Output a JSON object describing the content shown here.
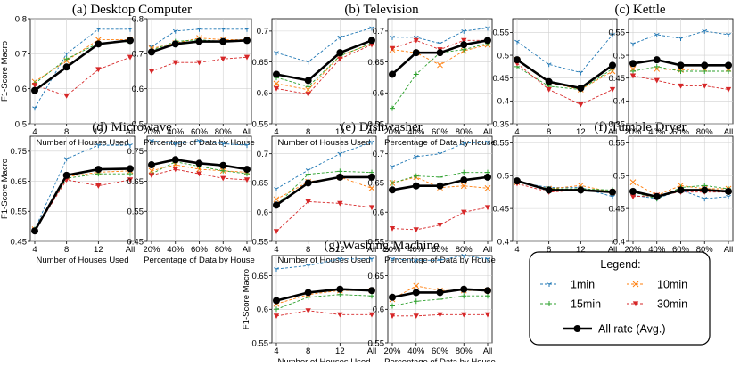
{
  "series_styles": [
    {
      "name": "1min",
      "color": "#1f77b4",
      "dash": "3,2",
      "marker": "tri_down",
      "width": 0.9
    },
    {
      "name": "10min",
      "color": "#ff7f0e",
      "dash": "3,2",
      "marker": "x",
      "width": 0.9
    },
    {
      "name": "15min",
      "color": "#2ca02c",
      "dash": "3,2",
      "marker": "plus",
      "width": 0.9
    },
    {
      "name": "30min",
      "color": "#d62728",
      "dash": "3,2",
      "marker": "tri_down_filled",
      "width": 0.9
    },
    {
      "name": "All rate (Avg.)",
      "color": "#000000",
      "dash": "",
      "marker": "circle",
      "width": 2.6
    }
  ],
  "legend": {
    "title": "Legend:",
    "items": [
      "1min",
      "10min",
      "15min",
      "30min",
      "All rate (Avg.)"
    ]
  },
  "groups": [
    {
      "title": "(a) Desktop Computer"
    },
    {
      "title": "(b) Television"
    },
    {
      "title": "(c) Kettle"
    },
    {
      "title": "(d) Microwave"
    },
    {
      "title": "(e) Dishwasher"
    },
    {
      "title": "(f) Tumble Dryer"
    },
    {
      "title": "(g) Washing Machine"
    }
  ],
  "chart_data": [
    {
      "id": "a1",
      "group": "(a) Desktop Computer",
      "type": "line",
      "xlabel": "Number of Houses Used",
      "ylabel": "F1-Score Macro",
      "categories": [
        "4",
        "8",
        "12",
        "All"
      ],
      "ylim": [
        0.5,
        0.8
      ],
      "yticks": [
        0.5,
        0.6,
        0.7,
        0.8
      ],
      "series": [
        {
          "name": "1min",
          "values": [
            0.545,
            0.7,
            0.77,
            0.77
          ]
        },
        {
          "name": "10min",
          "values": [
            0.62,
            0.68,
            0.74,
            0.74
          ]
        },
        {
          "name": "15min",
          "values": [
            0.615,
            0.685,
            0.73,
            0.735
          ]
        },
        {
          "name": "30min",
          "values": [
            0.61,
            0.58,
            0.655,
            0.69
          ]
        },
        {
          "name": "All rate (Avg.)",
          "values": [
            0.595,
            0.662,
            0.728,
            0.738
          ]
        }
      ]
    },
    {
      "id": "a2",
      "group": "(a) Desktop Computer",
      "type": "line",
      "xlabel": "Percentage of Data by House",
      "ylabel": "",
      "categories": [
        "20%",
        "40%",
        "60%",
        "80%",
        "All"
      ],
      "ylim": [
        0.5,
        0.8
      ],
      "yticks": [
        0.5,
        0.6,
        0.7,
        0.8
      ],
      "series": [
        {
          "name": "1min",
          "values": [
            0.72,
            0.765,
            0.77,
            0.77,
            0.77
          ]
        },
        {
          "name": "10min",
          "values": [
            0.715,
            0.73,
            0.745,
            0.74,
            0.74
          ]
        },
        {
          "name": "15min",
          "values": [
            0.71,
            0.735,
            0.74,
            0.735,
            0.74
          ]
        },
        {
          "name": "30min",
          "values": [
            0.65,
            0.675,
            0.675,
            0.685,
            0.69
          ]
        },
        {
          "name": "All rate (Avg.)",
          "values": [
            0.705,
            0.728,
            0.735,
            0.735,
            0.738
          ]
        }
      ]
    },
    {
      "id": "b1",
      "group": "(b) Television",
      "type": "line",
      "xlabel": "Number of Houses Used",
      "ylabel": "",
      "categories": [
        "4",
        "8",
        "12",
        "All"
      ],
      "ylim": [
        0.55,
        0.72
      ],
      "yticks": [
        0.55,
        0.6,
        0.65,
        0.7
      ],
      "series": [
        {
          "name": "1min",
          "values": [
            0.665,
            0.65,
            0.69,
            0.705
          ]
        },
        {
          "name": "10min",
          "values": [
            0.615,
            0.605,
            0.66,
            0.68
          ]
        },
        {
          "name": "15min",
          "values": [
            0.625,
            0.61,
            0.66,
            0.68
          ]
        },
        {
          "name": "30min",
          "values": [
            0.607,
            0.598,
            0.655,
            0.678
          ]
        },
        {
          "name": "All rate (Avg.)",
          "values": [
            0.63,
            0.62,
            0.665,
            0.685
          ]
        }
      ]
    },
    {
      "id": "b2",
      "group": "(b) Television",
      "type": "line",
      "xlabel": "Percentage of Data by House",
      "ylabel": "",
      "categories": [
        "20%",
        "40%",
        "60%",
        "80%",
        "All"
      ],
      "ylim": [
        0.55,
        0.72
      ],
      "yticks": [
        0.55,
        0.6,
        0.65,
        0.7
      ],
      "series": [
        {
          "name": "1min",
          "values": [
            0.69,
            0.69,
            0.68,
            0.7,
            0.705
          ]
        },
        {
          "name": "10min",
          "values": [
            0.67,
            0.665,
            0.645,
            0.668,
            0.678
          ]
        },
        {
          "name": "15min",
          "values": [
            0.575,
            0.63,
            0.665,
            0.67,
            0.68
          ]
        },
        {
          "name": "30min",
          "values": [
            0.672,
            0.685,
            0.67,
            0.685,
            0.685
          ]
        },
        {
          "name": "All rate (Avg.)",
          "values": [
            0.63,
            0.665,
            0.665,
            0.678,
            0.685
          ]
        }
      ]
    },
    {
      "id": "c1",
      "group": "(c) Kettle",
      "type": "line",
      "xlabel": "",
      "ylabel": "",
      "categories": [
        "4",
        "8",
        "12",
        "All"
      ],
      "ylim": [
        0.35,
        0.58
      ],
      "yticks": [
        0.35,
        0.4,
        0.45,
        0.5,
        0.55
      ],
      "series": [
        {
          "name": "1min",
          "values": [
            0.53,
            0.48,
            0.462,
            0.545
          ]
        },
        {
          "name": "10min",
          "values": [
            0.49,
            0.44,
            0.425,
            0.465
          ]
        },
        {
          "name": "15min",
          "values": [
            0.475,
            0.432,
            0.425,
            0.47
          ]
        },
        {
          "name": "30min",
          "values": [
            0.482,
            0.425,
            0.392,
            0.425
          ]
        },
        {
          "name": "All rate (Avg.)",
          "values": [
            0.49,
            0.442,
            0.428,
            0.478
          ]
        }
      ]
    },
    {
      "id": "c2",
      "group": "(c) Kettle",
      "type": "line",
      "xlabel": "",
      "ylabel": "",
      "categories": [
        "20%",
        "40%",
        "60%",
        "80%",
        "All"
      ],
      "ylim": [
        0.35,
        0.58
      ],
      "yticks": [
        0.35,
        0.4,
        0.45,
        0.5,
        0.55
      ],
      "series": [
        {
          "name": "1min",
          "values": [
            0.525,
            0.545,
            0.537,
            0.553,
            0.545
          ]
        },
        {
          "name": "10min",
          "values": [
            0.47,
            0.47,
            0.468,
            0.47,
            0.47
          ]
        },
        {
          "name": "15min",
          "values": [
            0.465,
            0.475,
            0.465,
            0.465,
            0.465
          ]
        },
        {
          "name": "30min",
          "values": [
            0.455,
            0.445,
            0.433,
            0.433,
            0.425
          ]
        },
        {
          "name": "All rate (Avg.)",
          "values": [
            0.482,
            0.49,
            0.478,
            0.478,
            0.478
          ]
        }
      ]
    },
    {
      "id": "d1",
      "group": "(d) Microwave",
      "type": "line",
      "xlabel": "Number of Houses Used",
      "ylabel": "F1-Score Macro",
      "categories": [
        "4",
        "8",
        "12",
        "All"
      ],
      "ylim": [
        0.45,
        0.8
      ],
      "yticks": [
        0.45,
        0.55,
        0.65,
        0.75
      ],
      "series": [
        {
          "name": "1min",
          "values": [
            0.49,
            0.725,
            0.77,
            0.77
          ]
        },
        {
          "name": "10min",
          "values": [
            0.49,
            0.665,
            0.68,
            0.685
          ]
        },
        {
          "name": "15min",
          "values": [
            0.49,
            0.66,
            0.675,
            0.675
          ]
        },
        {
          "name": "30min",
          "values": [
            0.485,
            0.655,
            0.635,
            0.655
          ]
        },
        {
          "name": "All rate (Avg.)",
          "values": [
            0.485,
            0.67,
            0.69,
            0.692
          ]
        }
      ]
    },
    {
      "id": "d2",
      "group": "(d) Microwave",
      "type": "line",
      "xlabel": "Percentage of Data by House",
      "ylabel": "",
      "categories": [
        "20%",
        "40%",
        "60%",
        "80%",
        "All"
      ],
      "ylim": [
        0.45,
        0.8
      ],
      "yticks": [
        0.45,
        0.55,
        0.65,
        0.75
      ],
      "series": [
        {
          "name": "1min",
          "values": [
            0.785,
            0.775,
            0.785,
            0.775,
            0.77
          ]
        },
        {
          "name": "10min",
          "values": [
            0.685,
            0.705,
            0.69,
            0.685,
            0.68
          ]
        },
        {
          "name": "15min",
          "values": [
            0.675,
            0.715,
            0.7,
            0.685,
            0.675
          ]
        },
        {
          "name": "30min",
          "values": [
            0.67,
            0.69,
            0.675,
            0.66,
            0.655
          ]
        },
        {
          "name": "All rate (Avg.)",
          "values": [
            0.705,
            0.722,
            0.71,
            0.703,
            0.69
          ]
        }
      ]
    },
    {
      "id": "e1",
      "group": "(e) Dishwasher",
      "type": "line",
      "xlabel": "Number of Houses Used",
      "ylabel": "",
      "categories": [
        "4",
        "8",
        "12",
        "All"
      ],
      "ylim": [
        0.55,
        0.73
      ],
      "yticks": [
        0.55,
        0.6,
        0.65,
        0.7
      ],
      "series": [
        {
          "name": "1min",
          "values": [
            0.64,
            0.672,
            0.7,
            0.72
          ]
        },
        {
          "name": "10min",
          "values": [
            0.622,
            0.652,
            0.66,
            0.641
          ]
        },
        {
          "name": "15min",
          "values": [
            0.612,
            0.665,
            0.67,
            0.668
          ]
        },
        {
          "name": "30min",
          "values": [
            0.567,
            0.618,
            0.615,
            0.608
          ]
        },
        {
          "name": "All rate (Avg.)",
          "values": [
            0.612,
            0.65,
            0.66,
            0.66
          ]
        }
      ]
    },
    {
      "id": "e2",
      "group": "(e) Dishwasher",
      "type": "line",
      "xlabel": "Percentage of Data by House",
      "ylabel": "",
      "categories": [
        "20%",
        "40%",
        "60%",
        "80%",
        "All"
      ],
      "ylim": [
        0.55,
        0.73
      ],
      "yticks": [
        0.55,
        0.6,
        0.65,
        0.7
      ],
      "series": [
        {
          "name": "1min",
          "values": [
            0.678,
            0.695,
            0.7,
            0.718,
            0.72
          ]
        },
        {
          "name": "10min",
          "values": [
            0.65,
            0.66,
            0.642,
            0.645,
            0.641
          ]
        },
        {
          "name": "15min",
          "values": [
            0.65,
            0.662,
            0.66,
            0.668,
            0.668
          ]
        },
        {
          "name": "30min",
          "values": [
            0.572,
            0.57,
            0.578,
            0.6,
            0.608
          ]
        },
        {
          "name": "All rate (Avg.)",
          "values": [
            0.638,
            0.645,
            0.645,
            0.655,
            0.66
          ]
        }
      ]
    },
    {
      "id": "f1",
      "group": "(f) Tumble Dryer",
      "type": "line",
      "xlabel": "",
      "ylabel": "",
      "categories": [
        "4",
        "8",
        "12",
        "All"
      ],
      "ylim": [
        0.4,
        0.56
      ],
      "yticks": [
        0.4,
        0.45,
        0.5,
        0.55
      ],
      "series": [
        {
          "name": "1min",
          "values": [
            0.49,
            0.482,
            0.482,
            0.468
          ]
        },
        {
          "name": "10min",
          "values": [
            0.49,
            0.48,
            0.485,
            0.475
          ]
        },
        {
          "name": "15min",
          "values": [
            0.49,
            0.48,
            0.48,
            0.478
          ]
        },
        {
          "name": "30min",
          "values": [
            0.488,
            0.475,
            0.478,
            0.475
          ]
        },
        {
          "name": "All rate (Avg.)",
          "values": [
            0.492,
            0.478,
            0.478,
            0.475
          ]
        }
      ]
    },
    {
      "id": "f2",
      "group": "(f) Tumble Dryer",
      "type": "line",
      "xlabel": "",
      "ylabel": "",
      "categories": [
        "20%",
        "40%",
        "60%",
        "80%",
        "All"
      ],
      "ylim": [
        0.4,
        0.56
      ],
      "yticks": [
        0.4,
        0.45,
        0.5,
        0.55
      ],
      "series": [
        {
          "name": "1min",
          "values": [
            0.47,
            0.465,
            0.478,
            0.465,
            0.468
          ]
        },
        {
          "name": "10min",
          "values": [
            0.49,
            0.47,
            0.485,
            0.48,
            0.48
          ]
        },
        {
          "name": "15min",
          "values": [
            0.475,
            0.465,
            0.482,
            0.485,
            0.48
          ]
        },
        {
          "name": "30min",
          "values": [
            0.468,
            0.47,
            0.475,
            0.475,
            0.475
          ]
        },
        {
          "name": "All rate (Avg.)",
          "values": [
            0.476,
            0.468,
            0.478,
            0.478,
            0.476
          ]
        }
      ]
    },
    {
      "id": "g1",
      "group": "(g) Washing Machine",
      "type": "line",
      "xlabel": "Number of Houses Used",
      "ylabel": "F1-Score Macro",
      "categories": [
        "4",
        "8",
        "12",
        "All"
      ],
      "ylim": [
        0.55,
        0.68
      ],
      "yticks": [
        0.55,
        0.6,
        0.65
      ],
      "series": [
        {
          "name": "1min",
          "values": [
            0.66,
            0.665,
            0.675,
            0.675
          ]
        },
        {
          "name": "10min",
          "values": [
            0.608,
            0.622,
            0.628,
            0.628
          ]
        },
        {
          "name": "15min",
          "values": [
            0.6,
            0.618,
            0.622,
            0.62
          ]
        },
        {
          "name": "30min",
          "values": [
            0.59,
            0.598,
            0.592,
            0.592
          ]
        },
        {
          "name": "All rate (Avg.)",
          "values": [
            0.613,
            0.625,
            0.63,
            0.628
          ]
        }
      ]
    },
    {
      "id": "g2",
      "group": "(g) Washing Machine",
      "type": "line",
      "xlabel": "Percentage of Data by House",
      "ylabel": "",
      "categories": [
        "20%",
        "40%",
        "60%",
        "80%",
        "All"
      ],
      "ylim": [
        0.55,
        0.68
      ],
      "yticks": [
        0.55,
        0.6,
        0.65
      ],
      "series": [
        {
          "name": "1min",
          "values": [
            0.675,
            0.673,
            0.673,
            0.68,
            0.675
          ]
        },
        {
          "name": "10min",
          "values": [
            0.615,
            0.635,
            0.628,
            0.628,
            0.628
          ]
        },
        {
          "name": "15min",
          "values": [
            0.605,
            0.612,
            0.615,
            0.62,
            0.62
          ]
        },
        {
          "name": "30min",
          "values": [
            0.59,
            0.59,
            0.592,
            0.592,
            0.592
          ]
        },
        {
          "name": "All rate (Avg.)",
          "values": [
            0.618,
            0.625,
            0.625,
            0.63,
            0.628
          ]
        }
      ]
    }
  ]
}
